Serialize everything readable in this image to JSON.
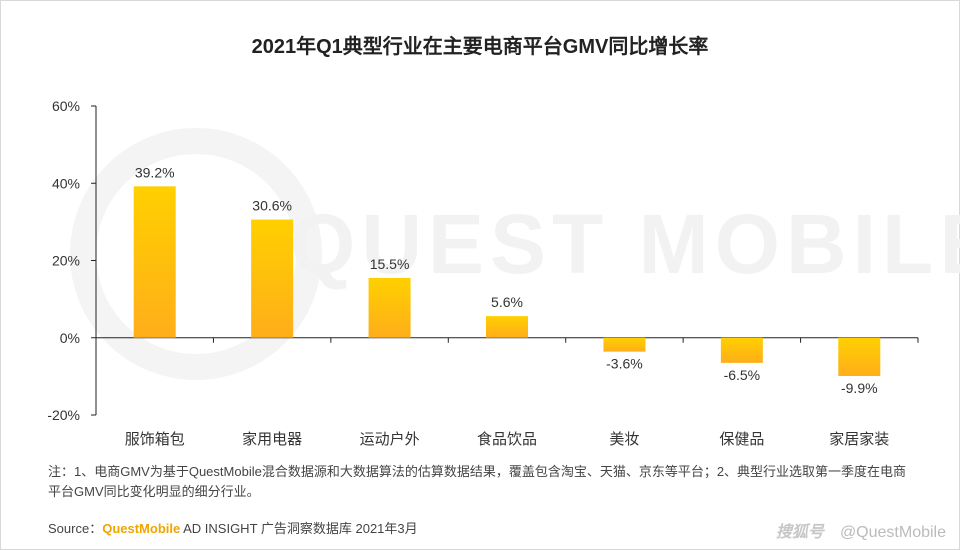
{
  "title": "2021年Q1典型行业在主要电商平台GMV同比增长率",
  "watermark": "QUEST MOBILE",
  "note": "注：1、电商GMV为基于QuestMobile混合数据源和大数据算法的估算数据结果，覆盖包含淘宝、天猫、京东等平台；2、典型行业选取第一季度在电商平台GMV同比变化明显的细分行业。",
  "source": {
    "prefix": "Source：",
    "brand": "QuestMobile",
    "suffix": " AD INSIGHT 广告洞察数据库 2021年3月"
  },
  "footer": {
    "logo": "搜狐号",
    "handle": "@QuestMobile"
  },
  "chart_data": {
    "type": "bar",
    "title": "2021年Q1典型行业在主要电商平台GMV同比增长率",
    "categories": [
      "服饰箱包",
      "家用电器",
      "运动户外",
      "食品饮品",
      "美妆",
      "保健品",
      "家居家装"
    ],
    "values": [
      39.2,
      30.6,
      15.5,
      5.6,
      -3.6,
      -6.5,
      -9.9
    ],
    "value_labels": [
      "39.2%",
      "30.6%",
      "15.5%",
      "5.6%",
      "-3.6%",
      "-6.5%",
      "-9.9%"
    ],
    "yticks": [
      -20,
      0,
      20,
      40,
      60
    ],
    "ytick_labels": [
      "-20%",
      "0%",
      "20%",
      "40%",
      "60%"
    ],
    "ylim": [
      -20,
      60
    ],
    "xlabel": "",
    "ylabel": "",
    "grid": false,
    "colors": {
      "bar_top": "#ffd000",
      "bar_bottom": "#ffae1a",
      "axis": "#222222"
    }
  }
}
